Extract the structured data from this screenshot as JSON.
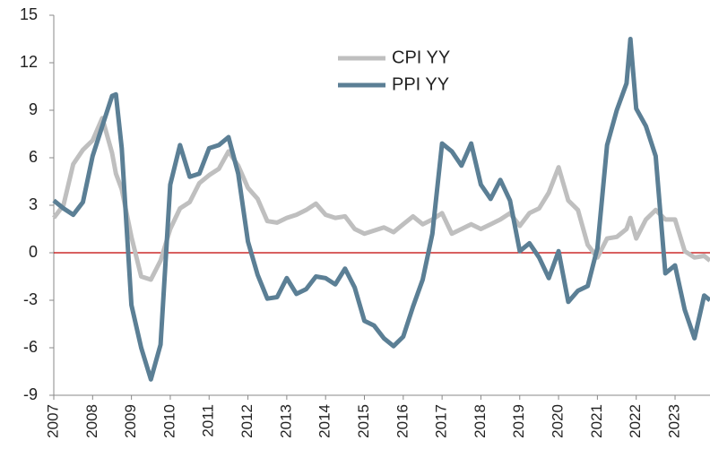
{
  "chart_data": {
    "type": "line",
    "x": [
      2007,
      2007.25,
      2007.5,
      2007.75,
      2008,
      2008.25,
      2008.5,
      2008.6,
      2008.75,
      2009,
      2009.25,
      2009.5,
      2009.75,
      2010,
      2010.25,
      2010.5,
      2010.75,
      2011,
      2011.25,
      2011.5,
      2011.75,
      2012,
      2012.25,
      2012.5,
      2012.75,
      2013,
      2013.25,
      2013.5,
      2013.75,
      2014,
      2014.25,
      2014.5,
      2014.75,
      2015,
      2015.25,
      2015.5,
      2015.75,
      2016,
      2016.25,
      2016.5,
      2016.75,
      2017,
      2017.25,
      2017.5,
      2017.75,
      2018,
      2018.25,
      2018.5,
      2018.75,
      2019,
      2019.25,
      2019.5,
      2019.75,
      2020,
      2020.25,
      2020.5,
      2020.75,
      2021,
      2021.25,
      2021.5,
      2021.75,
      2021.85,
      2022,
      2022.25,
      2022.5,
      2022.75,
      2023,
      2023.25,
      2023.5,
      2023.75,
      2023.9
    ],
    "series": [
      {
        "name": "CPI YY",
        "color": "#bfbfbf",
        "values": [
          2.2,
          3.0,
          5.6,
          6.5,
          7.1,
          8.5,
          6.3,
          5.0,
          4.0,
          1.0,
          -1.5,
          -1.7,
          -0.5,
          1.5,
          2.8,
          3.2,
          4.4,
          4.9,
          5.3,
          6.4,
          5.5,
          4.1,
          3.4,
          2.0,
          1.9,
          2.2,
          2.4,
          2.7,
          3.1,
          2.4,
          2.2,
          2.3,
          1.5,
          1.2,
          1.4,
          1.6,
          1.3,
          1.8,
          2.3,
          1.8,
          2.1,
          2.5,
          1.2,
          1.5,
          1.8,
          1.5,
          1.8,
          2.1,
          2.5,
          1.7,
          2.5,
          2.8,
          3.8,
          5.4,
          3.3,
          2.7,
          0.5,
          -0.3,
          0.9,
          1.0,
          1.5,
          2.2,
          0.9,
          2.1,
          2.7,
          2.1,
          2.1,
          0.1,
          -0.3,
          -0.2,
          -0.5
        ]
      },
      {
        "name": "PPI YY",
        "color": "#5b7f95",
        "values": [
          3.3,
          2.8,
          2.4,
          3.2,
          6.1,
          8.0,
          9.9,
          10.0,
          6.6,
          -3.3,
          -6.0,
          -8.0,
          -5.8,
          4.3,
          6.8,
          4.8,
          5.0,
          6.6,
          6.8,
          7.3,
          5.0,
          0.7,
          -1.4,
          -2.9,
          -2.8,
          -1.6,
          -2.6,
          -2.3,
          -1.5,
          -1.6,
          -2.0,
          -1.0,
          -2.2,
          -4.3,
          -4.6,
          -5.4,
          -5.9,
          -5.3,
          -3.4,
          -1.7,
          1.2,
          6.9,
          6.4,
          5.5,
          6.9,
          4.3,
          3.4,
          4.6,
          3.3,
          0.1,
          0.6,
          -0.3,
          -1.6,
          0.1,
          -3.1,
          -2.4,
          -2.1,
          0.3,
          6.8,
          9.0,
          10.7,
          13.5,
          9.1,
          8.0,
          6.1,
          -1.3,
          -0.8,
          -3.6,
          -5.4,
          -2.7,
          -3.0
        ]
      }
    ],
    "xlim": [
      2007,
      2023.9
    ],
    "xticks": [
      2007,
      2008,
      2009,
      2010,
      2011,
      2012,
      2013,
      2014,
      2015,
      2016,
      2017,
      2018,
      2019,
      2020,
      2021,
      2022,
      2023
    ],
    "ylim": [
      -9,
      15
    ],
    "yticks": [
      -9,
      -6,
      -3,
      0,
      3,
      6,
      9,
      12,
      15
    ],
    "reference_line": {
      "value": 0,
      "color": "#c00000"
    },
    "grid": false,
    "legend": "upper center"
  }
}
